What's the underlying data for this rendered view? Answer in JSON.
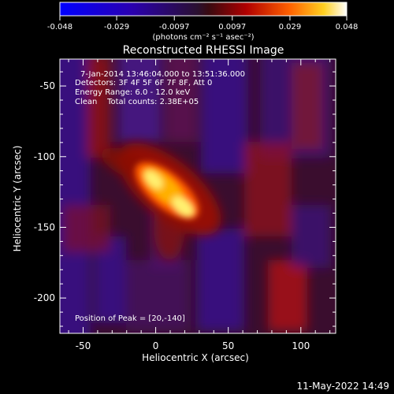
{
  "colorbar": {
    "ticks": [
      "-0.048",
      "-0.029",
      "-0.0097",
      "0.0097",
      "0.029",
      "0.048"
    ],
    "unit_label": "(photons cm⁻² s⁻¹ asec⁻²)"
  },
  "chart_data": {
    "type": "heatmap",
    "title": "Reconstructed RHESSI Image",
    "xlabel": "Heliocentric X (arcsec)",
    "ylabel": "Heliocentric Y (arcsec)",
    "xlim": [
      -66,
      124
    ],
    "ylim": [
      -225,
      -31
    ],
    "x_ticks": [
      -50,
      0,
      50,
      100
    ],
    "y_ticks": [
      -50,
      -100,
      -150,
      -200
    ],
    "colorbar_range": [
      -0.048,
      0.048
    ],
    "info_lines": [
      "7-Jan-2014 13:46:04.000 to 13:51:36.000",
      "Detectors: 3F 4F 5F 6F 7F 8F, Att 0",
      "Energy Range: 6.0 - 12.0 keV",
      "Clean    Total counts: 2.38E+05"
    ],
    "peak_text": "Position of Peak = [20,-140]",
    "peak_position": [
      20,
      -140
    ]
  },
  "footer": {
    "date": "11-May-2022 14:49"
  }
}
